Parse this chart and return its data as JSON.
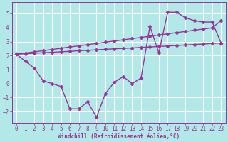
{
  "background_color": "#b2e8e8",
  "grid_color": "#ffffff",
  "line_color": "#993399",
  "marker": "D",
  "marker_size": 2.5,
  "line_width": 1.0,
  "title": "Windchill (Refroidissement éolien,°C)",
  "xlim": [
    -0.5,
    23.5
  ],
  "ylim": [
    -2.8,
    5.8
  ],
  "yticks": [
    -2,
    -1,
    0,
    1,
    2,
    3,
    4,
    5
  ],
  "xticks": [
    0,
    1,
    2,
    3,
    4,
    5,
    6,
    7,
    8,
    9,
    10,
    11,
    12,
    13,
    14,
    15,
    16,
    17,
    18,
    19,
    20,
    21,
    22,
    23
  ],
  "zigzag_x": [
    0,
    1,
    2,
    3,
    4,
    5,
    6,
    7,
    8,
    9,
    10,
    11,
    12,
    13,
    14,
    15,
    16,
    17,
    18,
    19,
    20,
    21,
    22,
    23
  ],
  "zigzag_y": [
    2.1,
    1.6,
    1.1,
    0.2,
    0.0,
    -0.2,
    -1.8,
    -1.8,
    -1.3,
    -2.4,
    -0.7,
    0.1,
    0.5,
    0.0,
    0.4,
    4.1,
    2.2,
    5.1,
    5.1,
    4.7,
    4.5,
    4.4,
    4.4,
    2.9
  ],
  "lin1_x": [
    0,
    1,
    2,
    3,
    4,
    5,
    6,
    7,
    8,
    9,
    10,
    11,
    12,
    13,
    14,
    15,
    16,
    17,
    18,
    19,
    20,
    21,
    22,
    23
  ],
  "lin1_y": [
    2.1,
    2.14,
    2.17,
    2.21,
    2.24,
    2.28,
    2.31,
    2.35,
    2.38,
    2.42,
    2.45,
    2.49,
    2.52,
    2.55,
    2.59,
    2.62,
    2.66,
    2.69,
    2.73,
    2.76,
    2.8,
    2.83,
    2.87,
    2.9
  ],
  "lin2_x": [
    0,
    1,
    2,
    3,
    4,
    5,
    6,
    7,
    8,
    9,
    10,
    11,
    12,
    13,
    14,
    15,
    16,
    17,
    18,
    19,
    20,
    21,
    22,
    23
  ],
  "lin2_y": [
    2.1,
    2.19,
    2.27,
    2.36,
    2.44,
    2.53,
    2.62,
    2.7,
    2.79,
    2.87,
    2.96,
    3.05,
    3.13,
    3.22,
    3.3,
    3.39,
    3.48,
    3.56,
    3.65,
    3.73,
    3.82,
    3.9,
    3.99,
    4.5
  ],
  "title_fontsize": 5.5,
  "tick_fontsize": 5.5,
  "xlabel_pad": 1
}
